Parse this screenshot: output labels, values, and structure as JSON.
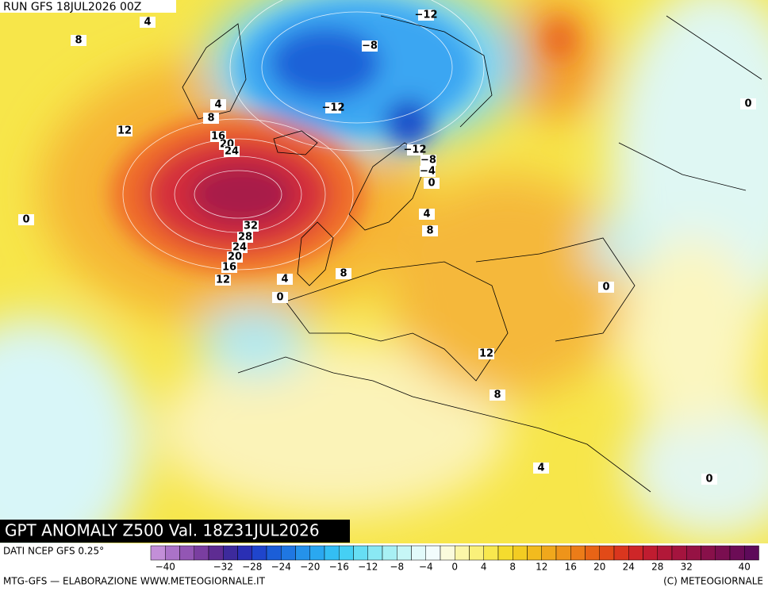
{
  "header": {
    "run": "RUN GFS 18JUL2026 00Z"
  },
  "map": {
    "title": "GPT ANOMALY Z500 Val. 18Z31JUL2026",
    "contour_labels": [
      "4",
      "8",
      "−12",
      "−8",
      "0",
      "−12",
      "4",
      "8",
      "12",
      "16",
      "20",
      "24",
      "−12",
      "−8",
      "−4",
      "0",
      "0",
      "4",
      "8",
      "32",
      "28",
      "24",
      "20",
      "16",
      "12",
      "4",
      "8",
      "0",
      "0",
      "12",
      "8",
      "4",
      "0"
    ]
  },
  "legend": {
    "source": "DATI NCEP GFS 0.25°",
    "ticks": [
      {
        "value": -40,
        "label": "−40"
      },
      {
        "value": -32,
        "label": "−32"
      },
      {
        "value": -28,
        "label": "−28"
      },
      {
        "value": -24,
        "label": "−24"
      },
      {
        "value": -20,
        "label": "−20"
      },
      {
        "value": -16,
        "label": "−16"
      },
      {
        "value": -12,
        "label": "−12"
      },
      {
        "value": -8,
        "label": "−8"
      },
      {
        "value": -4,
        "label": "−4"
      },
      0,
      4,
      8,
      12,
      16,
      20,
      24,
      28,
      32,
      40
    ]
  },
  "footer": {
    "left": "MTG-GFS — ELABORAZIONE WWW.METEOGIORNALE.IT",
    "right": "(C) METEOGIORNALE"
  }
}
